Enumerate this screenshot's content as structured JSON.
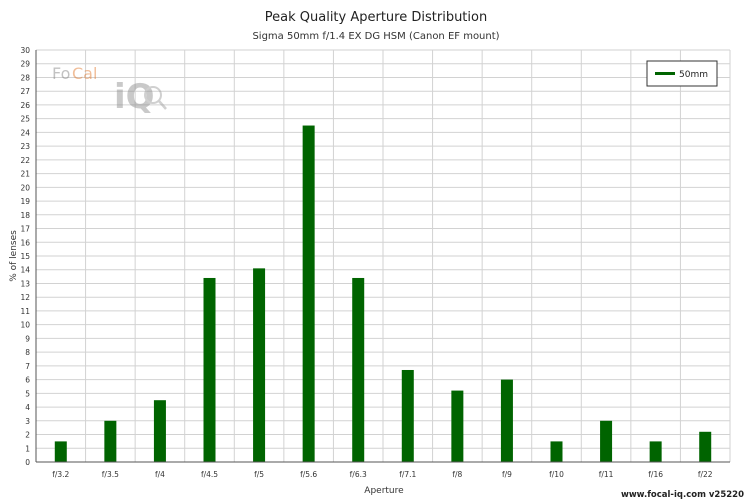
{
  "chart_data": {
    "type": "bar",
    "title": "Peak Quality Aperture Distribution",
    "subtitle": "Sigma 50mm f/1.4 EX DG HSM (Canon EF mount)",
    "xlabel": "Aperture",
    "ylabel": "% of lenses",
    "categories": [
      "f/3.2",
      "f/3.5",
      "f/4",
      "f/4.5",
      "f/5",
      "f/5.6",
      "f/6.3",
      "f/7.1",
      "f/8",
      "f/9",
      "f/10",
      "f/11",
      "f/16",
      "f/22"
    ],
    "series": [
      {
        "name": "50mm",
        "color": "#006400",
        "values": [
          1.5,
          3.0,
          4.5,
          13.4,
          14.1,
          24.5,
          13.4,
          6.7,
          5.2,
          6.0,
          1.5,
          3.0,
          1.5,
          2.2
        ]
      }
    ],
    "ylim": [
      0,
      30
    ],
    "ytick_step": 1,
    "grid": true,
    "legend_position": "top-right"
  },
  "logo": {
    "text": "FoCal iQ",
    "part1": "Fo",
    "part2": "Cal",
    "part3": "iQ"
  },
  "footer": {
    "credit": "www.focal-iq.com  v25220"
  }
}
